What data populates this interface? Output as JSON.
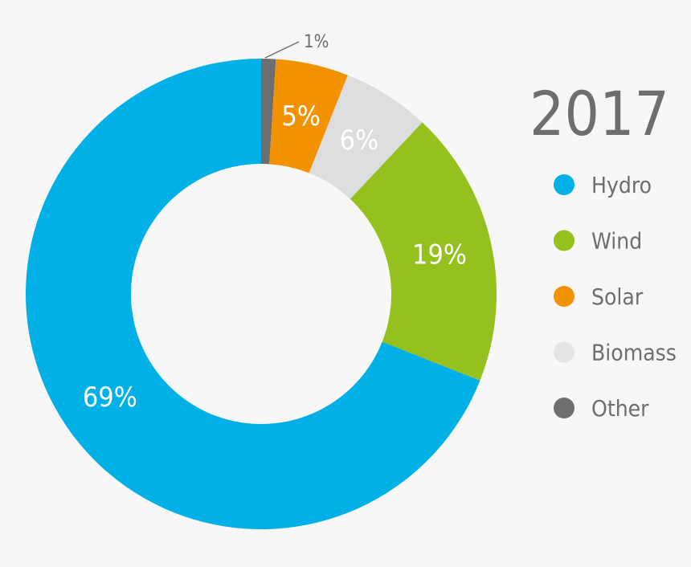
{
  "chart_data": {
    "type": "pie",
    "title": "2017",
    "categories": [
      "Other",
      "Solar",
      "Biomass",
      "Wind",
      "Hydro"
    ],
    "values": [
      1,
      5,
      6,
      19,
      69
    ],
    "value_labels": [
      "1%",
      "5%",
      "6%",
      "19%",
      "69%"
    ],
    "colors": [
      "#6d6e70",
      "#f39200",
      "#dcdddf",
      "#95c11f",
      "#00b0e6"
    ],
    "donut": true,
    "legend": {
      "placement": "right",
      "entries": [
        {
          "label": "Hydro",
          "color": "#00b0e6"
        },
        {
          "label": "Wind",
          "color": "#95c11f"
        },
        {
          "label": "Solar",
          "color": "#f39200"
        },
        {
          "label": "Biomass",
          "color": "#e4e5e6"
        },
        {
          "label": "Other",
          "color": "#6d6e70"
        }
      ]
    }
  }
}
